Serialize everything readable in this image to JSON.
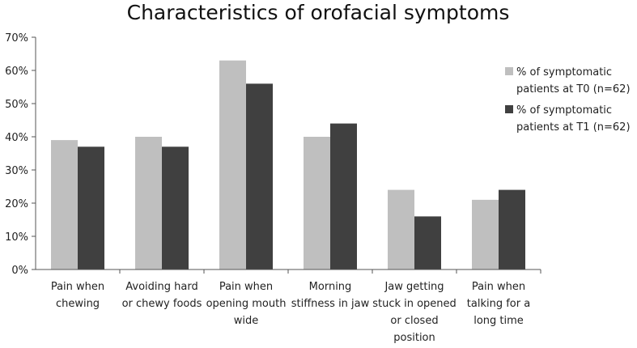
{
  "chart_data": {
    "type": "bar",
    "title": "Characteristics of orofacial symptoms",
    "xlabel": "",
    "ylabel": "",
    "ylim": [
      0,
      70
    ],
    "yticks": [
      "0%",
      "10%",
      "20%",
      "30%",
      "40%",
      "50%",
      "60%",
      "70%"
    ],
    "categories": [
      [
        "Pain when",
        "chewing"
      ],
      [
        "Avoiding hard",
        "or chewy foods"
      ],
      [
        "Pain when",
        "opening mouth",
        "wide"
      ],
      [
        "Morning",
        "stiffness in jaw"
      ],
      [
        "Jaw getting",
        "stuck in opened",
        "or closed",
        "position"
      ],
      [
        "Pain when",
        "talking for a",
        "long time"
      ]
    ],
    "series": [
      {
        "name": [
          "% of symptomatic",
          "patients at T0 (n=62)"
        ],
        "color": "#bfbfbf",
        "values": [
          39,
          40,
          63,
          40,
          24,
          21
        ]
      },
      {
        "name": [
          "% of symptomatic",
          "patients at T1 (n=62)"
        ],
        "color": "#404040",
        "values": [
          37,
          37,
          56,
          44,
          16,
          24
        ]
      }
    ],
    "grid": false,
    "legend_position": "right"
  }
}
